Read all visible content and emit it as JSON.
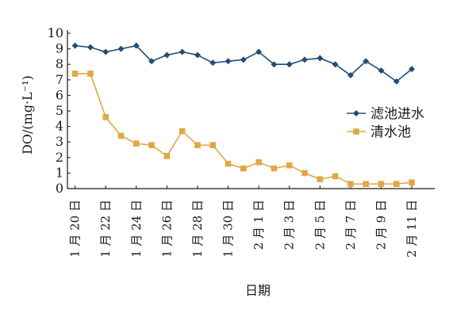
{
  "chart_data": {
    "type": "line",
    "title": "",
    "xlabel": "日期",
    "ylabel": "DO/(mg·L⁻¹)",
    "ylim": [
      0,
      10
    ],
    "yticks": [
      "0",
      "1",
      "2",
      "3",
      "4",
      "5",
      "6",
      "7",
      "8",
      "9",
      "10"
    ],
    "x_tick_labels": [
      "1 月 20 日",
      "1 月 22 日",
      "1 月 24 日",
      "1 月 26 日",
      "1 月 28 日",
      "1 月 30 日",
      "2 月 1 日",
      "2 月 3 日",
      "2 月 5 日",
      "2 月 7 日",
      "2 月 9 日",
      "2 月 11 日"
    ],
    "x_tick_days": [
      0,
      2,
      4,
      6,
      8,
      10,
      12,
      14,
      16,
      18,
      20,
      22
    ],
    "xlim": [
      -0.5,
      23.5
    ],
    "grid": false,
    "legend_position": "right",
    "series": [
      {
        "name": "滤池进水",
        "color": "#1f4e79",
        "marker": "diamond",
        "x": [
          0,
          1,
          2,
          3,
          4,
          5,
          6,
          7,
          8,
          9,
          10,
          11,
          12,
          13,
          14,
          15,
          16,
          17,
          18,
          19,
          20,
          21,
          22
        ],
        "values": [
          9.2,
          9.1,
          8.8,
          9.0,
          9.2,
          8.2,
          8.6,
          8.8,
          8.6,
          8.1,
          8.2,
          8.3,
          8.8,
          8.0,
          8.0,
          8.3,
          8.4,
          8.0,
          7.3,
          8.2,
          7.6,
          6.9,
          7.7
        ]
      },
      {
        "name": "清水池",
        "color": "#e0a845",
        "marker": "square",
        "x": [
          0,
          1,
          2,
          3,
          4,
          5,
          6,
          7,
          8,
          9,
          10,
          11,
          12,
          13,
          14,
          15,
          16,
          17,
          18,
          19,
          20,
          21,
          22
        ],
        "values": [
          7.4,
          7.4,
          4.6,
          3.4,
          2.9,
          2.8,
          2.1,
          3.7,
          2.8,
          2.8,
          1.6,
          1.3,
          1.7,
          1.3,
          1.5,
          1.0,
          0.6,
          0.8,
          0.3,
          0.3,
          0.3,
          0.3,
          0.4
        ]
      }
    ]
  }
}
